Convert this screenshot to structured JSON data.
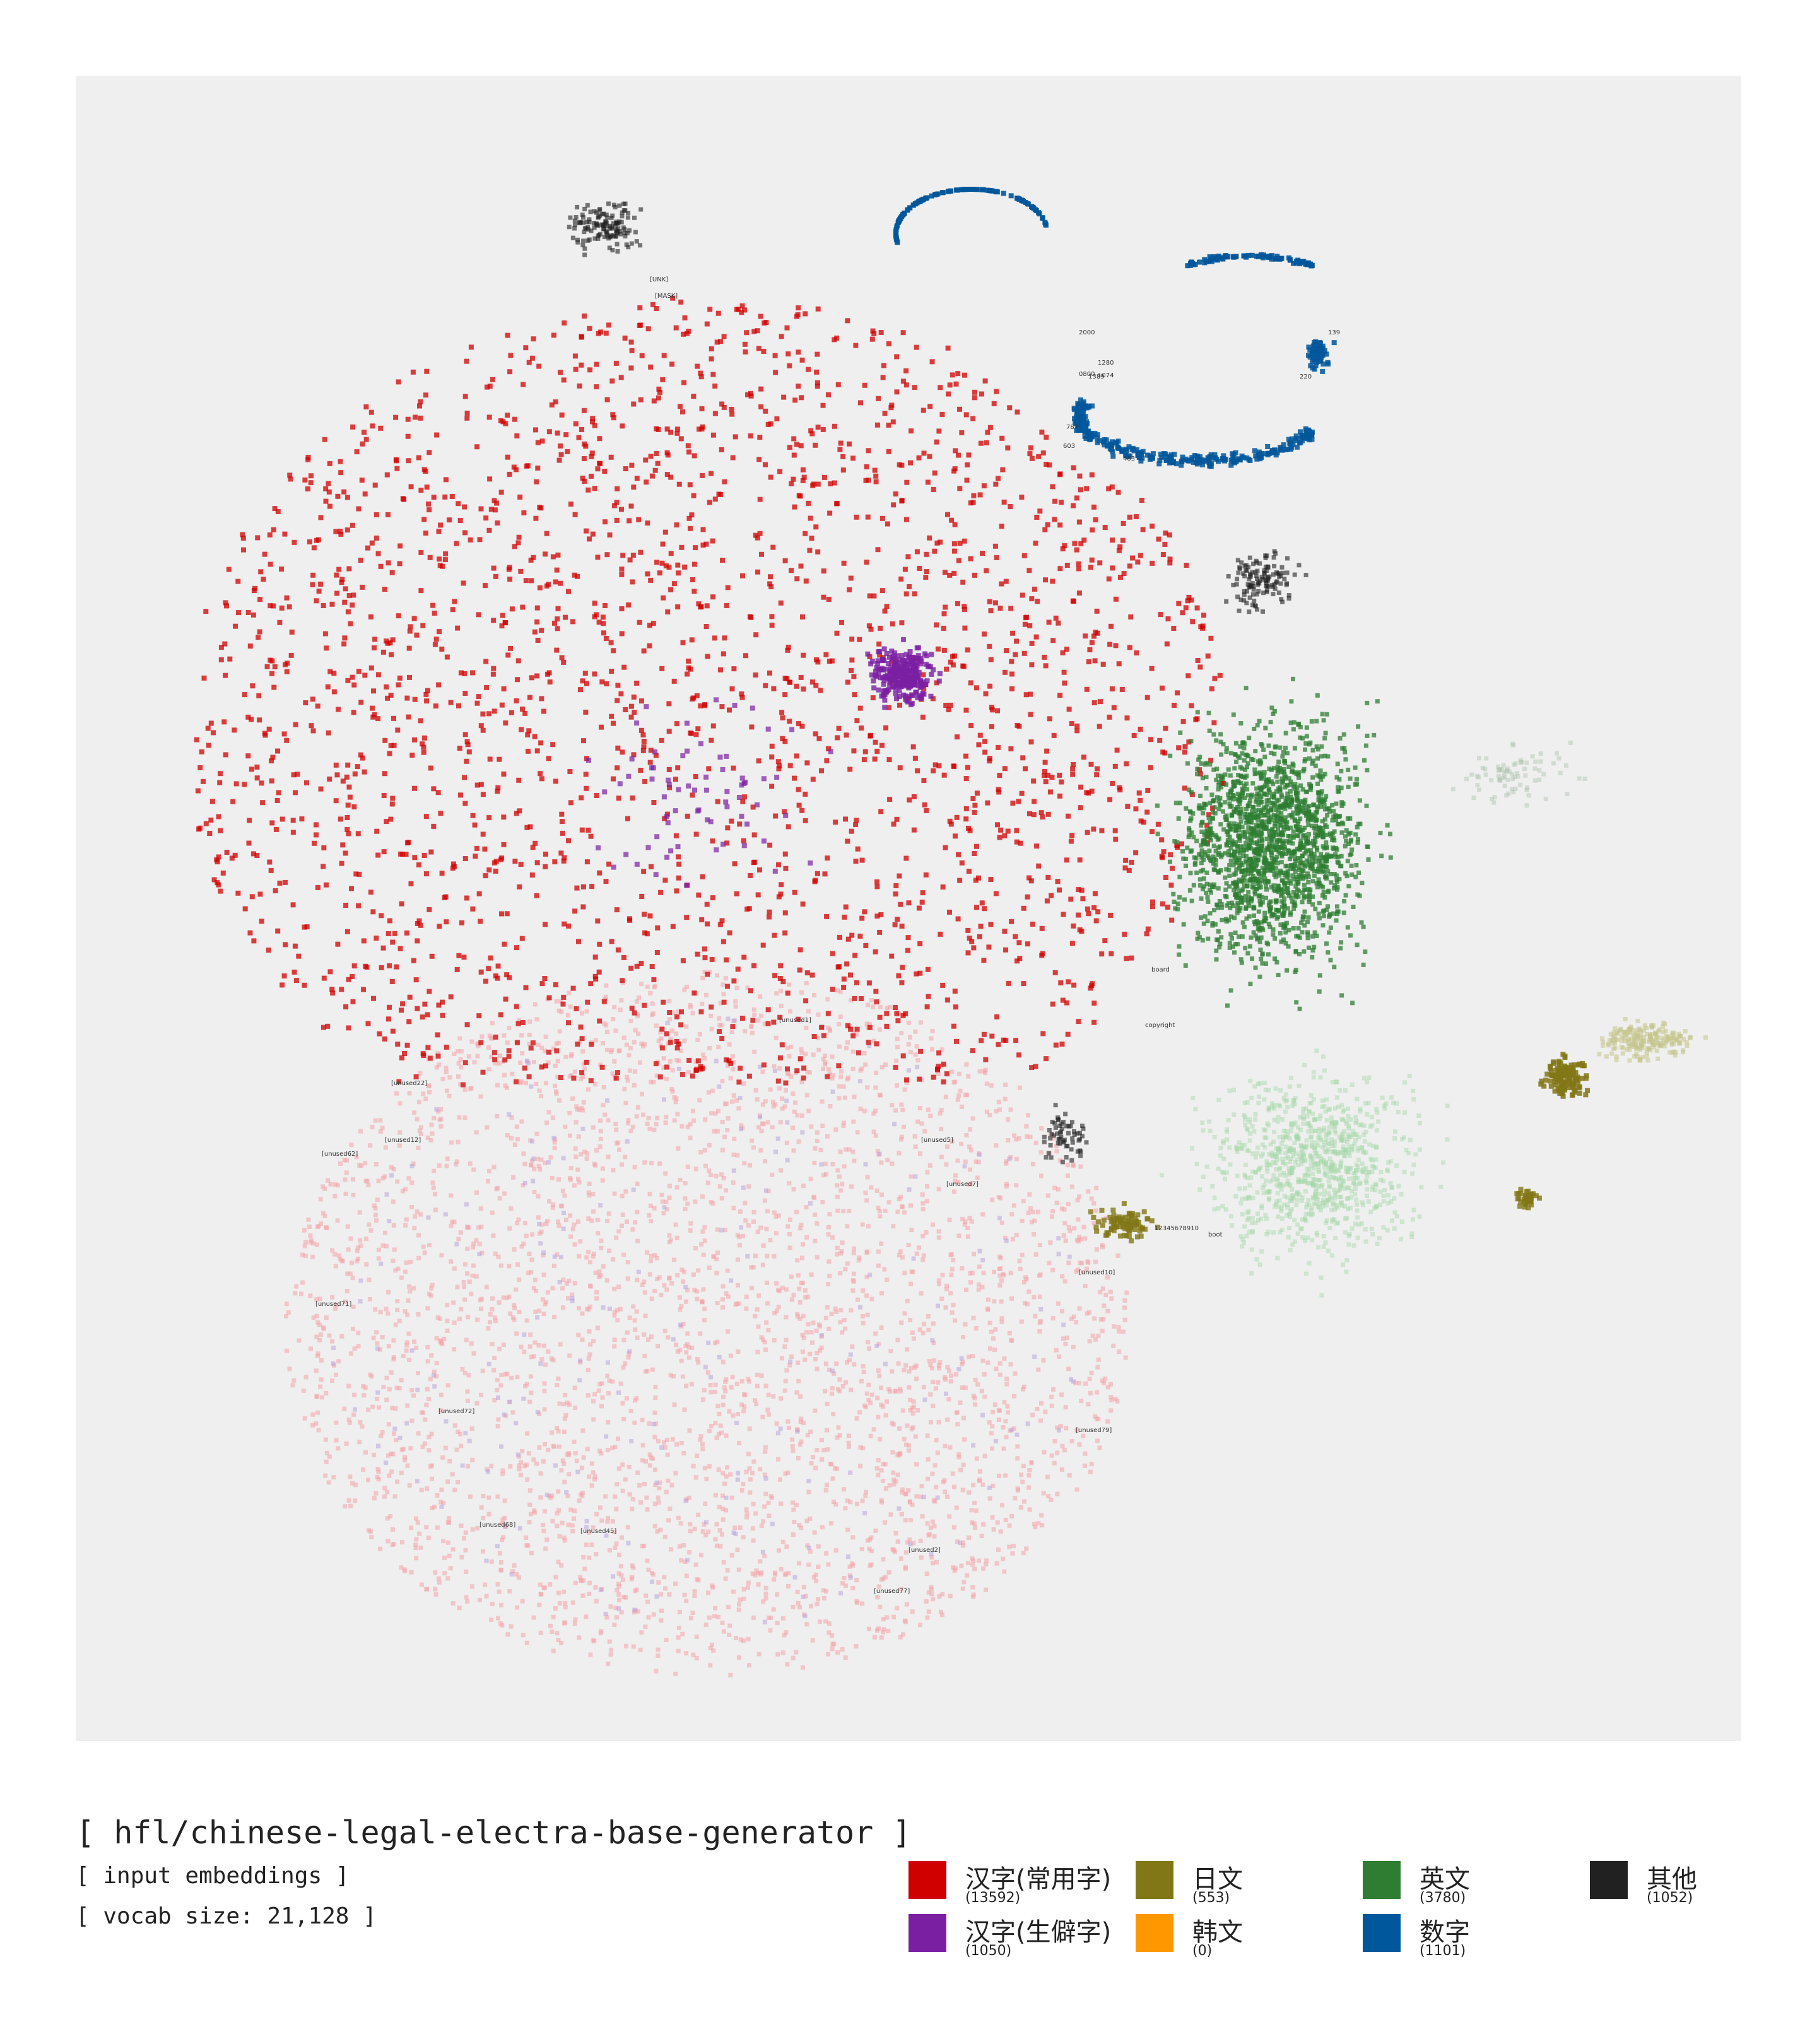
{
  "header": {
    "title": "[ hfl/chinese-legal-electra-base-generator ]",
    "subtitle": "[ input embeddings ]",
    "vocab": "[ vocab size: 21,128 ]"
  },
  "chart_data": {
    "type": "scatter",
    "title": "[ hfl/chinese-legal-electra-base-generator ]",
    "grid": false,
    "legend_position": "bottom-right",
    "series": [
      {
        "name": "汉字(常用字)",
        "count": "(13592)",
        "color": "#d10000"
      },
      {
        "name": "汉字(生僻字)",
        "count": "(1050)",
        "color": "#7b1fa2"
      },
      {
        "name": "日文",
        "count": "(553)",
        "color": "#827717"
      },
      {
        "name": "韩文",
        "count": "(0)",
        "color": "#ff9800"
      },
      {
        "name": "英文",
        "count": "(3780)",
        "color": "#2e7d32"
      },
      {
        "name": "数字",
        "count": "(1101)",
        "color": "#01579b"
      },
      {
        "name": "其他",
        "count": "(1052)",
        "color": "#212121"
      }
    ],
    "annotations": [
      "[UNK]",
      "[MASK]",
      "[unused1]",
      "[unused2]",
      "[unused5]",
      "[unused7]",
      "[unused10]",
      "[unused12]",
      "[unused22]",
      "[unused45]",
      "[unused62]",
      "[unused68]",
      "[unused71]",
      "[unused72]",
      "[unused77]",
      "[unused79]",
      "2000",
      "1389",
      "1074",
      "1280",
      "0800",
      "787",
      "603",
      "483",
      "220",
      "139",
      "12345678910",
      "copyright",
      "board",
      "boot"
    ]
  }
}
